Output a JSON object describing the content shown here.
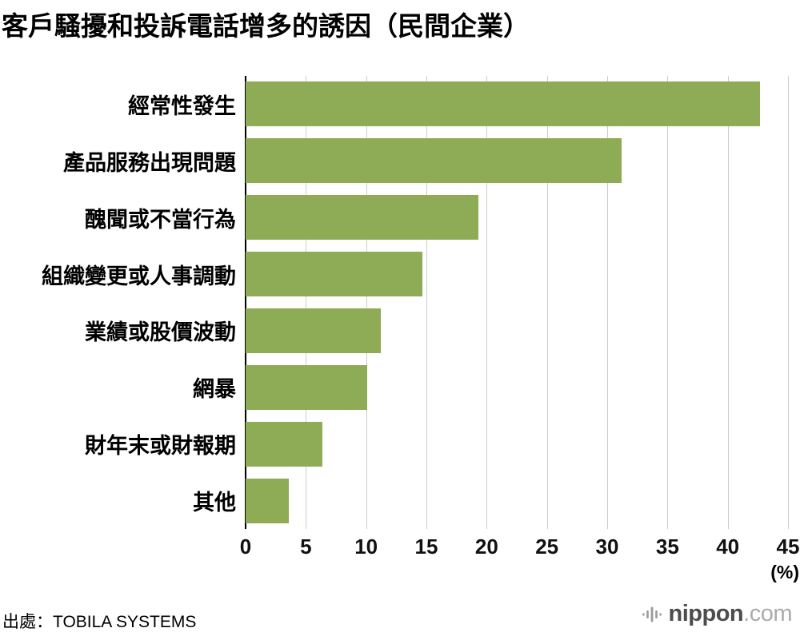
{
  "header": {
    "title": "客戶騷擾和投訴電話增多的誘因（民間企業）"
  },
  "footer": {
    "source": "出處：TOBILA SYSTEMS",
    "logo_text": "nippon",
    "logo_suffix": ".com"
  },
  "colors": {
    "bar": "#8dac55",
    "gridline": "#cbcbcb",
    "axis": "#000000",
    "logo_dark": "#4c4c4c",
    "logo_light": "#ababab"
  },
  "chart_data": {
    "type": "bar",
    "orientation": "horizontal",
    "title": "客戶騷擾和投訴電話增多的誘因（民間企業）",
    "categories": [
      "經常性發生",
      "產品服務出現問題",
      "醜聞或不當行為",
      "組織變更或人事調動",
      "業績或股價波動",
      "網暴",
      "財年末或財報期",
      "其他"
    ],
    "values": [
      42.7,
      31.2,
      19.3,
      14.7,
      11.2,
      10.1,
      6.4,
      3.6
    ],
    "xlabel": "(%)",
    "ylabel": "",
    "xlim": [
      0,
      45
    ],
    "xticks": [
      0,
      5,
      10,
      15,
      20,
      25,
      30,
      35,
      40,
      45
    ],
    "bar_color": "#8dac55",
    "grid": true,
    "legend_position": "none"
  }
}
